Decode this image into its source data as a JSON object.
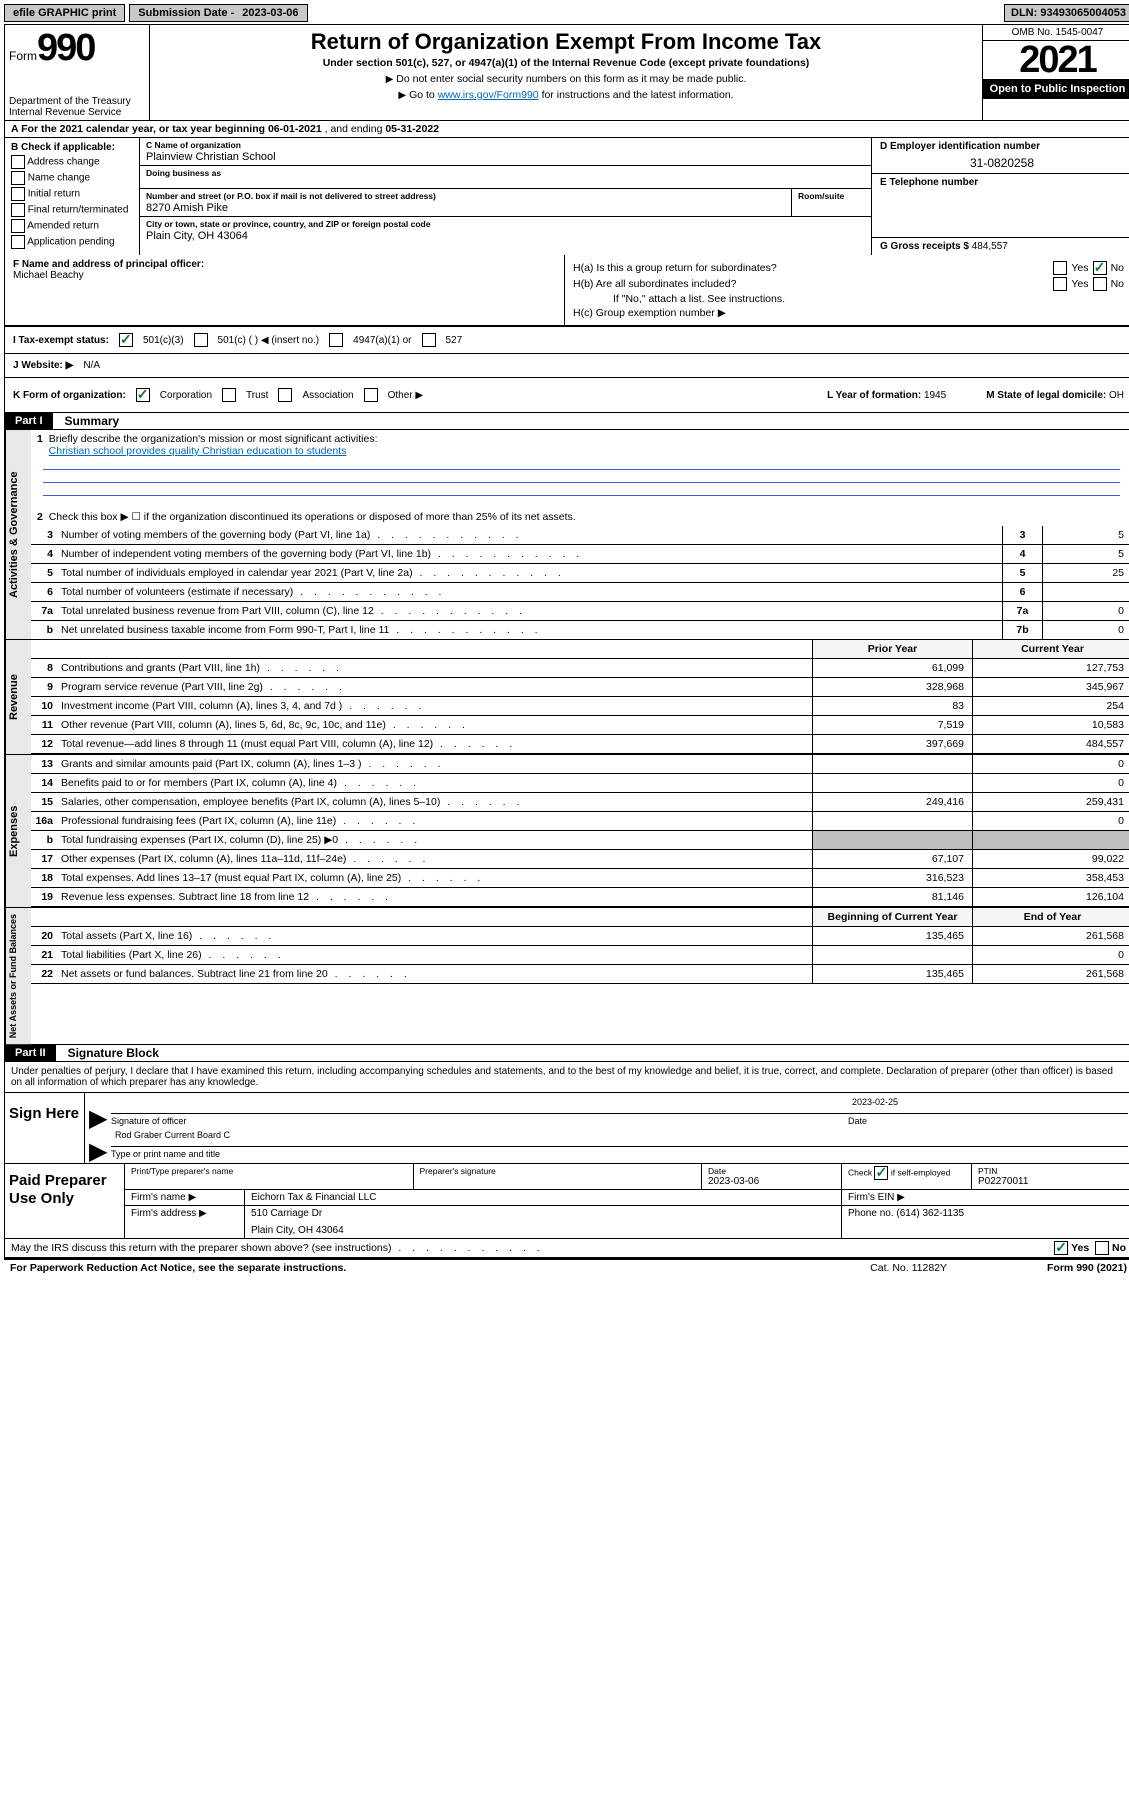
{
  "topbar": {
    "efile": "efile GRAPHIC print",
    "sub_label": "Submission Date - ",
    "sub_date": "2023-03-06",
    "dln_label": "DLN: ",
    "dln": "93493065004053"
  },
  "header": {
    "form_prefix": "Form",
    "form_num": "990",
    "dept": "Department of the Treasury\nInternal Revenue Service",
    "title": "Return of Organization Exempt From Income Tax",
    "sub": "Under section 501(c), 527, or 4947(a)(1) of the Internal Revenue Code (except private foundations)",
    "note1": "Do not enter social security numbers on this form as it may be made public.",
    "note2_pre": "Go to ",
    "note2_link": "www.irs.gov/Form990",
    "note2_post": " for instructions and the latest information.",
    "omb": "OMB No. 1545-0047",
    "year": "2021",
    "open": "Open to Public Inspection"
  },
  "rowA": {
    "label": "A For the 2021 calendar year, or tax year beginning ",
    "begin": "06-01-2021",
    "mid": " , and ending ",
    "end": "05-31-2022"
  },
  "boxB": {
    "title": "B Check if applicable:",
    "items": [
      "Address change",
      "Name change",
      "Initial return",
      "Final return/terminated",
      "Amended return",
      "Application pending"
    ]
  },
  "boxC": {
    "name_lbl": "C Name of organization",
    "name": "Plainview Christian School",
    "dba_lbl": "Doing business as",
    "dba": "",
    "addr_lbl": "Number and street (or P.O. box if mail is not delivered to street address)",
    "room_lbl": "Room/suite",
    "addr": "8270 Amish Pike",
    "city_lbl": "City or town, state or province, country, and ZIP or foreign postal code",
    "city": "Plain City, OH  43064"
  },
  "boxD": {
    "lbl": "D Employer identification number",
    "val": "31-0820258",
    "e_lbl": "E Telephone number",
    "e_val": "",
    "g_lbl": "G Gross receipts $ ",
    "g_val": "484,557"
  },
  "boxF": {
    "lbl": "F Name and address of principal officer:",
    "name": "Michael Beachy"
  },
  "boxH": {
    "a": "H(a)  Is this a group return for subordinates?",
    "b": "H(b)  Are all subordinates included?",
    "b_note": "If \"No,\" attach a list. See instructions.",
    "c": "H(c)  Group exemption number ▶",
    "yes": "Yes",
    "no": "No"
  },
  "rowI": {
    "lbl": "I    Tax-exempt status:",
    "o1": "501(c)(3)",
    "o2": "501(c) (  ) ◀ (insert no.)",
    "o3": "4947(a)(1) or",
    "o4": "527"
  },
  "rowJ": {
    "lbl": "J   Website: ▶",
    "val": "N/A"
  },
  "rowK": {
    "lbl": "K Form of organization:",
    "o1": "Corporation",
    "o2": "Trust",
    "o3": "Association",
    "o4": "Other ▶",
    "L_lbl": "L Year of formation: ",
    "L_val": "1945",
    "M_lbl": "M State of legal domicile: ",
    "M_val": "OH"
  },
  "part1": {
    "hdr": "Part I",
    "title": "Summary",
    "vtab1": "Activities & Governance",
    "l1_pre": "Briefly describe the organization's mission or most significant activities:",
    "l1_txt": "Christian school provides quality Christian education to students",
    "l2": "Check this box ▶ ☐ if the organization discontinued its operations or disposed of more than 25% of its net assets.",
    "lines_top": [
      {
        "n": "3",
        "d": "Number of voting members of the governing body (Part VI, line 1a)",
        "box": "3",
        "v": "5"
      },
      {
        "n": "4",
        "d": "Number of independent voting members of the governing body (Part VI, line 1b)",
        "box": "4",
        "v": "5"
      },
      {
        "n": "5",
        "d": "Total number of individuals employed in calendar year 2021 (Part V, line 2a)",
        "box": "5",
        "v": "25"
      },
      {
        "n": "6",
        "d": "Total number of volunteers (estimate if necessary)",
        "box": "6",
        "v": ""
      },
      {
        "n": "7a",
        "d": "Total unrelated business revenue from Part VIII, column (C), line 12",
        "box": "7a",
        "v": "0"
      },
      {
        "n": "b",
        "d": "Net unrelated business taxable income from Form 990-T, Part I, line 11",
        "box": "7b",
        "v": "0"
      }
    ],
    "vtab2": "Revenue",
    "col_prior": "Prior Year",
    "col_curr": "Current Year",
    "rev": [
      {
        "n": "8",
        "d": "Contributions and grants (Part VIII, line 1h)",
        "p": "61,099",
        "c": "127,753"
      },
      {
        "n": "9",
        "d": "Program service revenue (Part VIII, line 2g)",
        "p": "328,968",
        "c": "345,967"
      },
      {
        "n": "10",
        "d": "Investment income (Part VIII, column (A), lines 3, 4, and 7d )",
        "p": "83",
        "c": "254"
      },
      {
        "n": "11",
        "d": "Other revenue (Part VIII, column (A), lines 5, 6d, 8c, 9c, 10c, and 11e)",
        "p": "7,519",
        "c": "10,583"
      },
      {
        "n": "12",
        "d": "Total revenue—add lines 8 through 11 (must equal Part VIII, column (A), line 12)",
        "p": "397,669",
        "c": "484,557"
      }
    ],
    "vtab3": "Expenses",
    "exp": [
      {
        "n": "13",
        "d": "Grants and similar amounts paid (Part IX, column (A), lines 1–3 )",
        "p": "",
        "c": "0"
      },
      {
        "n": "14",
        "d": "Benefits paid to or for members (Part IX, column (A), line 4)",
        "p": "",
        "c": "0"
      },
      {
        "n": "15",
        "d": "Salaries, other compensation, employee benefits (Part IX, column (A), lines 5–10)",
        "p": "249,416",
        "c": "259,431"
      },
      {
        "n": "16a",
        "d": "Professional fundraising fees (Part IX, column (A), line 11e)",
        "p": "",
        "c": "0"
      },
      {
        "n": "b",
        "d": "Total fundraising expenses (Part IX, column (D), line 25) ▶0",
        "p": "grey",
        "c": "grey"
      },
      {
        "n": "17",
        "d": "Other expenses (Part IX, column (A), lines 11a–11d, 11f–24e)",
        "p": "67,107",
        "c": "99,022"
      },
      {
        "n": "18",
        "d": "Total expenses. Add lines 13–17 (must equal Part IX, column (A), line 25)",
        "p": "316,523",
        "c": "358,453"
      },
      {
        "n": "19",
        "d": "Revenue less expenses. Subtract line 18 from line 12",
        "p": "81,146",
        "c": "126,104"
      }
    ],
    "vtab4": "Net Assets or Fund Balances",
    "col_boy": "Beginning of Current Year",
    "col_eoy": "End of Year",
    "net": [
      {
        "n": "20",
        "d": "Total assets (Part X, line 16)",
        "p": "135,465",
        "c": "261,568"
      },
      {
        "n": "21",
        "d": "Total liabilities (Part X, line 26)",
        "p": "",
        "c": "0"
      },
      {
        "n": "22",
        "d": "Net assets or fund balances. Subtract line 21 from line 20",
        "p": "135,465",
        "c": "261,568"
      }
    ]
  },
  "part2": {
    "hdr": "Part II",
    "title": "Signature Block",
    "penalty": "Under penalties of perjury, I declare that I have examined this return, including accompanying schedules and statements, and to the best of my knowledge and belief, it is true, correct, and complete. Declaration of preparer (other than officer) is based on all information of which preparer has any knowledge.",
    "sign_here": "Sign Here",
    "sig_of": "Signature of officer",
    "date_lbl": "Date",
    "date_val": "2023-02-25",
    "name_title": "Rod Graber  Current Board C",
    "type_lbl": "Type or print name and title",
    "paid_lbl": "Paid Preparer Use Only",
    "r1": {
      "c1": "Print/Type preparer's name",
      "c2": "Preparer's signature",
      "c3_lbl": "Date",
      "c3": "2023-03-06",
      "c4_lbl": "Check ☑ if self-employed",
      "c5_lbl": "PTIN",
      "c5": "P02270011"
    },
    "r2": {
      "lbl": "Firm's name    ▶",
      "val": "Eichorn Tax & Financial LLC",
      "ein_lbl": "Firm's EIN ▶"
    },
    "r3": {
      "lbl": "Firm's address ▶",
      "val1": "510 Carriage Dr",
      "val2": "Plain City, OH  43064",
      "ph_lbl": "Phone no. ",
      "ph": "(614) 362-1135"
    },
    "discuss": "May the IRS discuss this return with the preparer shown above? (see instructions)",
    "yes": "Yes",
    "no": "No"
  },
  "footer": {
    "l": "For Paperwork Reduction Act Notice, see the separate instructions.",
    "m": "Cat. No. 11282Y",
    "r": "Form 990 (2021)"
  },
  "colors": {
    "link": "#0066b3",
    "check": "#0a7a2f",
    "blueline": "#3b5fc4"
  }
}
